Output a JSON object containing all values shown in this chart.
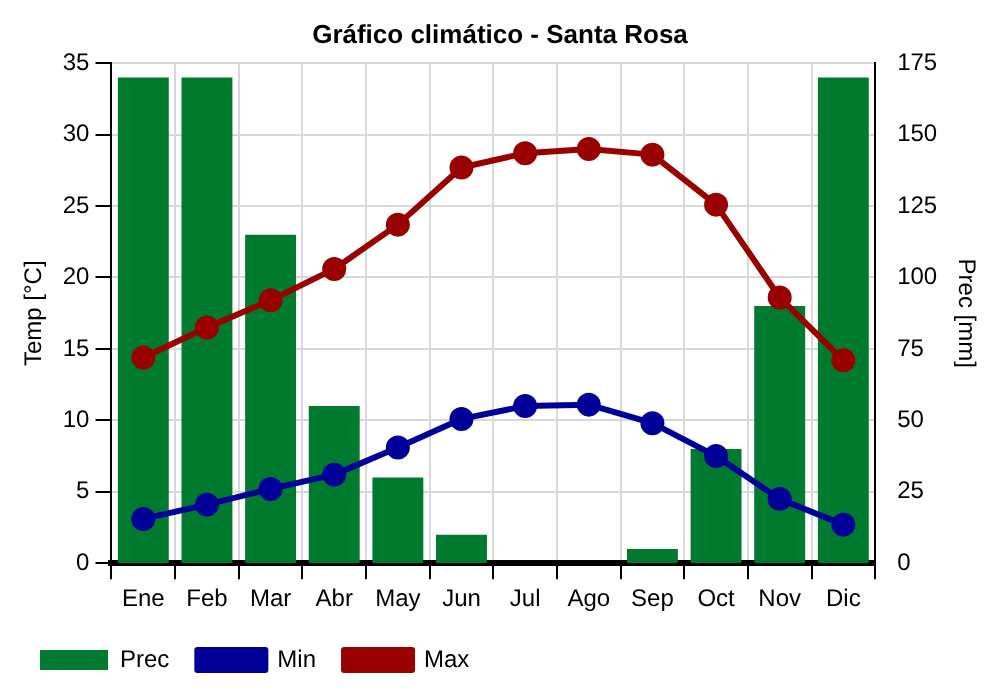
{
  "chart_data": {
    "type": "bar",
    "title": "Gráfico climático - Santa Rosa",
    "ylabel": "Temp [°C]",
    "y2label": "Prec [mm]",
    "categories": [
      "Ene",
      "Feb",
      "Mar",
      "Abr",
      "May",
      "Jun",
      "Jul",
      "Ago",
      "Sep",
      "Oct",
      "Nov",
      "Dic"
    ],
    "series": [
      {
        "name": "Prec",
        "axis": "y2",
        "color": "#007a2f",
        "values": [
          170,
          170,
          115,
          55,
          30,
          10,
          0,
          0,
          5,
          40,
          90,
          170
        ]
      },
      {
        "name": "Min",
        "type": "line",
        "color": "#000099",
        "values": [
          3.1,
          4.1,
          5.2,
          6.2,
          8.1,
          10.1,
          11.0,
          11.1,
          9.8,
          7.5,
          4.5,
          2.7
        ]
      },
      {
        "name": "Max",
        "type": "line",
        "color": "#990000",
        "values": [
          14.4,
          16.5,
          18.4,
          20.6,
          23.7,
          27.7,
          28.7,
          29.0,
          28.6,
          25.1,
          18.6,
          14.2
        ]
      }
    ],
    "ylim": [
      0,
      35
    ],
    "yticks": [
      0,
      5,
      10,
      15,
      20,
      25,
      30,
      35
    ],
    "y2lim": [
      0,
      175
    ],
    "y2ticks": [
      0,
      25,
      50,
      75,
      100,
      125,
      150,
      175
    ],
    "grid": true,
    "legend": "bottom left",
    "marker": "circle",
    "line_style": "solid"
  }
}
